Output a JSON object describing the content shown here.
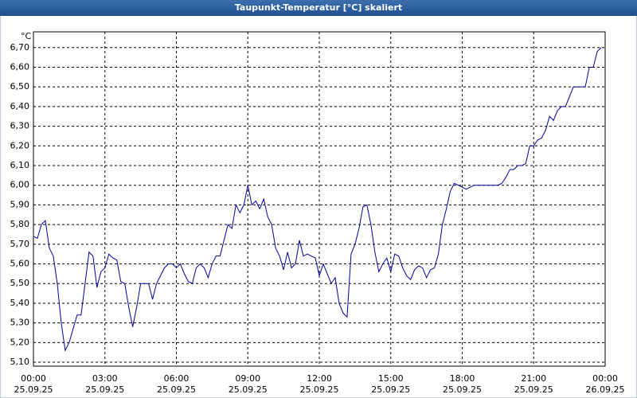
{
  "chart_data": {
    "type": "line",
    "title": "Taupunkt-Temperatur [°C] skaliert",
    "y_unit": "°C",
    "x": [
      0,
      10,
      20,
      30,
      40,
      50,
      60,
      70,
      80,
      90,
      100,
      110,
      120,
      130,
      140,
      150,
      160,
      170,
      180,
      190,
      200,
      210,
      220,
      230,
      240,
      250,
      260,
      270,
      280,
      290,
      300,
      310,
      320,
      330,
      340,
      350,
      360,
      370,
      380,
      390,
      400,
      410,
      420,
      430,
      440,
      450,
      460,
      470,
      480,
      490,
      500,
      510,
      520,
      530,
      540,
      550,
      560,
      570,
      580,
      590,
      600,
      610,
      620,
      630,
      640,
      650,
      660,
      670,
      680,
      690,
      700,
      710,
      720,
      730,
      740,
      750,
      760,
      770,
      780,
      790,
      800,
      810,
      820,
      830,
      840,
      850,
      860,
      870,
      880,
      890,
      900,
      910,
      920,
      930,
      940,
      950,
      960,
      970,
      980,
      990,
      1000,
      1010,
      1020,
      1030,
      1040,
      1050,
      1060,
      1070,
      1080,
      1090,
      1100,
      1110,
      1120,
      1130,
      1140,
      1150,
      1160,
      1170,
      1180,
      1190,
      1200,
      1210,
      1220,
      1230,
      1240,
      1250,
      1260,
      1270,
      1280,
      1290,
      1300,
      1310,
      1320,
      1330,
      1340,
      1350,
      1360,
      1370,
      1380,
      1390,
      1400,
      1410,
      1420,
      1430
    ],
    "series": [
      {
        "color": "#00009c",
        "values": [
          5.74,
          5.73,
          5.8,
          5.82,
          5.68,
          5.64,
          5.5,
          5.3,
          5.16,
          5.2,
          5.27,
          5.34,
          5.34,
          5.5,
          5.66,
          5.64,
          5.48,
          5.56,
          5.58,
          5.65,
          5.63,
          5.62,
          5.51,
          5.5,
          5.38,
          5.28,
          5.38,
          5.5,
          5.5,
          5.5,
          5.42,
          5.5,
          5.54,
          5.58,
          5.6,
          5.6,
          5.58,
          5.6,
          5.55,
          5.51,
          5.5,
          5.58,
          5.6,
          5.58,
          5.53,
          5.6,
          5.64,
          5.64,
          5.72,
          5.8,
          5.78,
          5.9,
          5.86,
          5.9,
          6.0,
          5.9,
          5.92,
          5.88,
          5.93,
          5.84,
          5.8,
          5.68,
          5.64,
          5.57,
          5.66,
          5.58,
          5.6,
          5.72,
          5.64,
          5.65,
          5.64,
          5.63,
          5.54,
          5.6,
          5.55,
          5.5,
          5.53,
          5.4,
          5.35,
          5.33,
          5.65,
          5.7,
          5.78,
          5.89,
          5.9,
          5.8,
          5.66,
          5.56,
          5.6,
          5.63,
          5.56,
          5.65,
          5.64,
          5.58,
          5.54,
          5.52,
          5.57,
          5.59,
          5.58,
          5.53,
          5.57,
          5.58,
          5.65,
          5.8,
          5.88,
          5.97,
          6.01,
          6.0,
          5.99,
          5.98,
          5.99,
          6.0,
          6.0,
          6.0,
          6.0,
          6.0,
          6.0,
          6.0,
          6.01,
          6.04,
          6.08,
          6.08,
          6.1,
          6.1,
          6.11,
          6.2,
          6.2,
          6.23,
          6.24,
          6.28,
          6.35,
          6.33,
          6.38,
          6.4,
          6.4,
          6.45,
          6.5,
          6.5,
          6.5,
          6.5,
          6.6,
          6.6,
          6.68,
          6.7
        ]
      }
    ],
    "xlim": [
      0,
      1440
    ],
    "xticks": [
      {
        "value": 0,
        "label": "00:00",
        "date": "25.09.25"
      },
      {
        "value": 180,
        "label": "03:00",
        "date": "25.09.25"
      },
      {
        "value": 360,
        "label": "06:00",
        "date": "25.09.25"
      },
      {
        "value": 540,
        "label": "09:00",
        "date": "25.09.25"
      },
      {
        "value": 720,
        "label": "12:00",
        "date": "25.09.25"
      },
      {
        "value": 900,
        "label": "15:00",
        "date": "25.09.25"
      },
      {
        "value": 1080,
        "label": "18:00",
        "date": "25.09.25"
      },
      {
        "value": 1260,
        "label": "21:00",
        "date": "25.09.25"
      },
      {
        "value": 1440,
        "label": "00:00",
        "date": "26.09.25"
      }
    ],
    "ylim": [
      5.08,
      6.78
    ],
    "yticks": [
      {
        "value": 5.1,
        "label": "5,10"
      },
      {
        "value": 5.2,
        "label": "5,20"
      },
      {
        "value": 5.3,
        "label": "5,30"
      },
      {
        "value": 5.4,
        "label": "5,40"
      },
      {
        "value": 5.5,
        "label": "5,50"
      },
      {
        "value": 5.6,
        "label": "5,60"
      },
      {
        "value": 5.7,
        "label": "5,70"
      },
      {
        "value": 5.8,
        "label": "5,80"
      },
      {
        "value": 5.9,
        "label": "5,90"
      },
      {
        "value": 6.0,
        "label": "6,00"
      },
      {
        "value": 6.1,
        "label": "6,10"
      },
      {
        "value": 6.2,
        "label": "6,20"
      },
      {
        "value": 6.3,
        "label": "6,30"
      },
      {
        "value": 6.4,
        "label": "6,40"
      },
      {
        "value": 6.5,
        "label": "6,50"
      },
      {
        "value": 6.6,
        "label": "6,60"
      },
      {
        "value": 6.7,
        "label": "6,70"
      }
    ],
    "grid": true
  }
}
